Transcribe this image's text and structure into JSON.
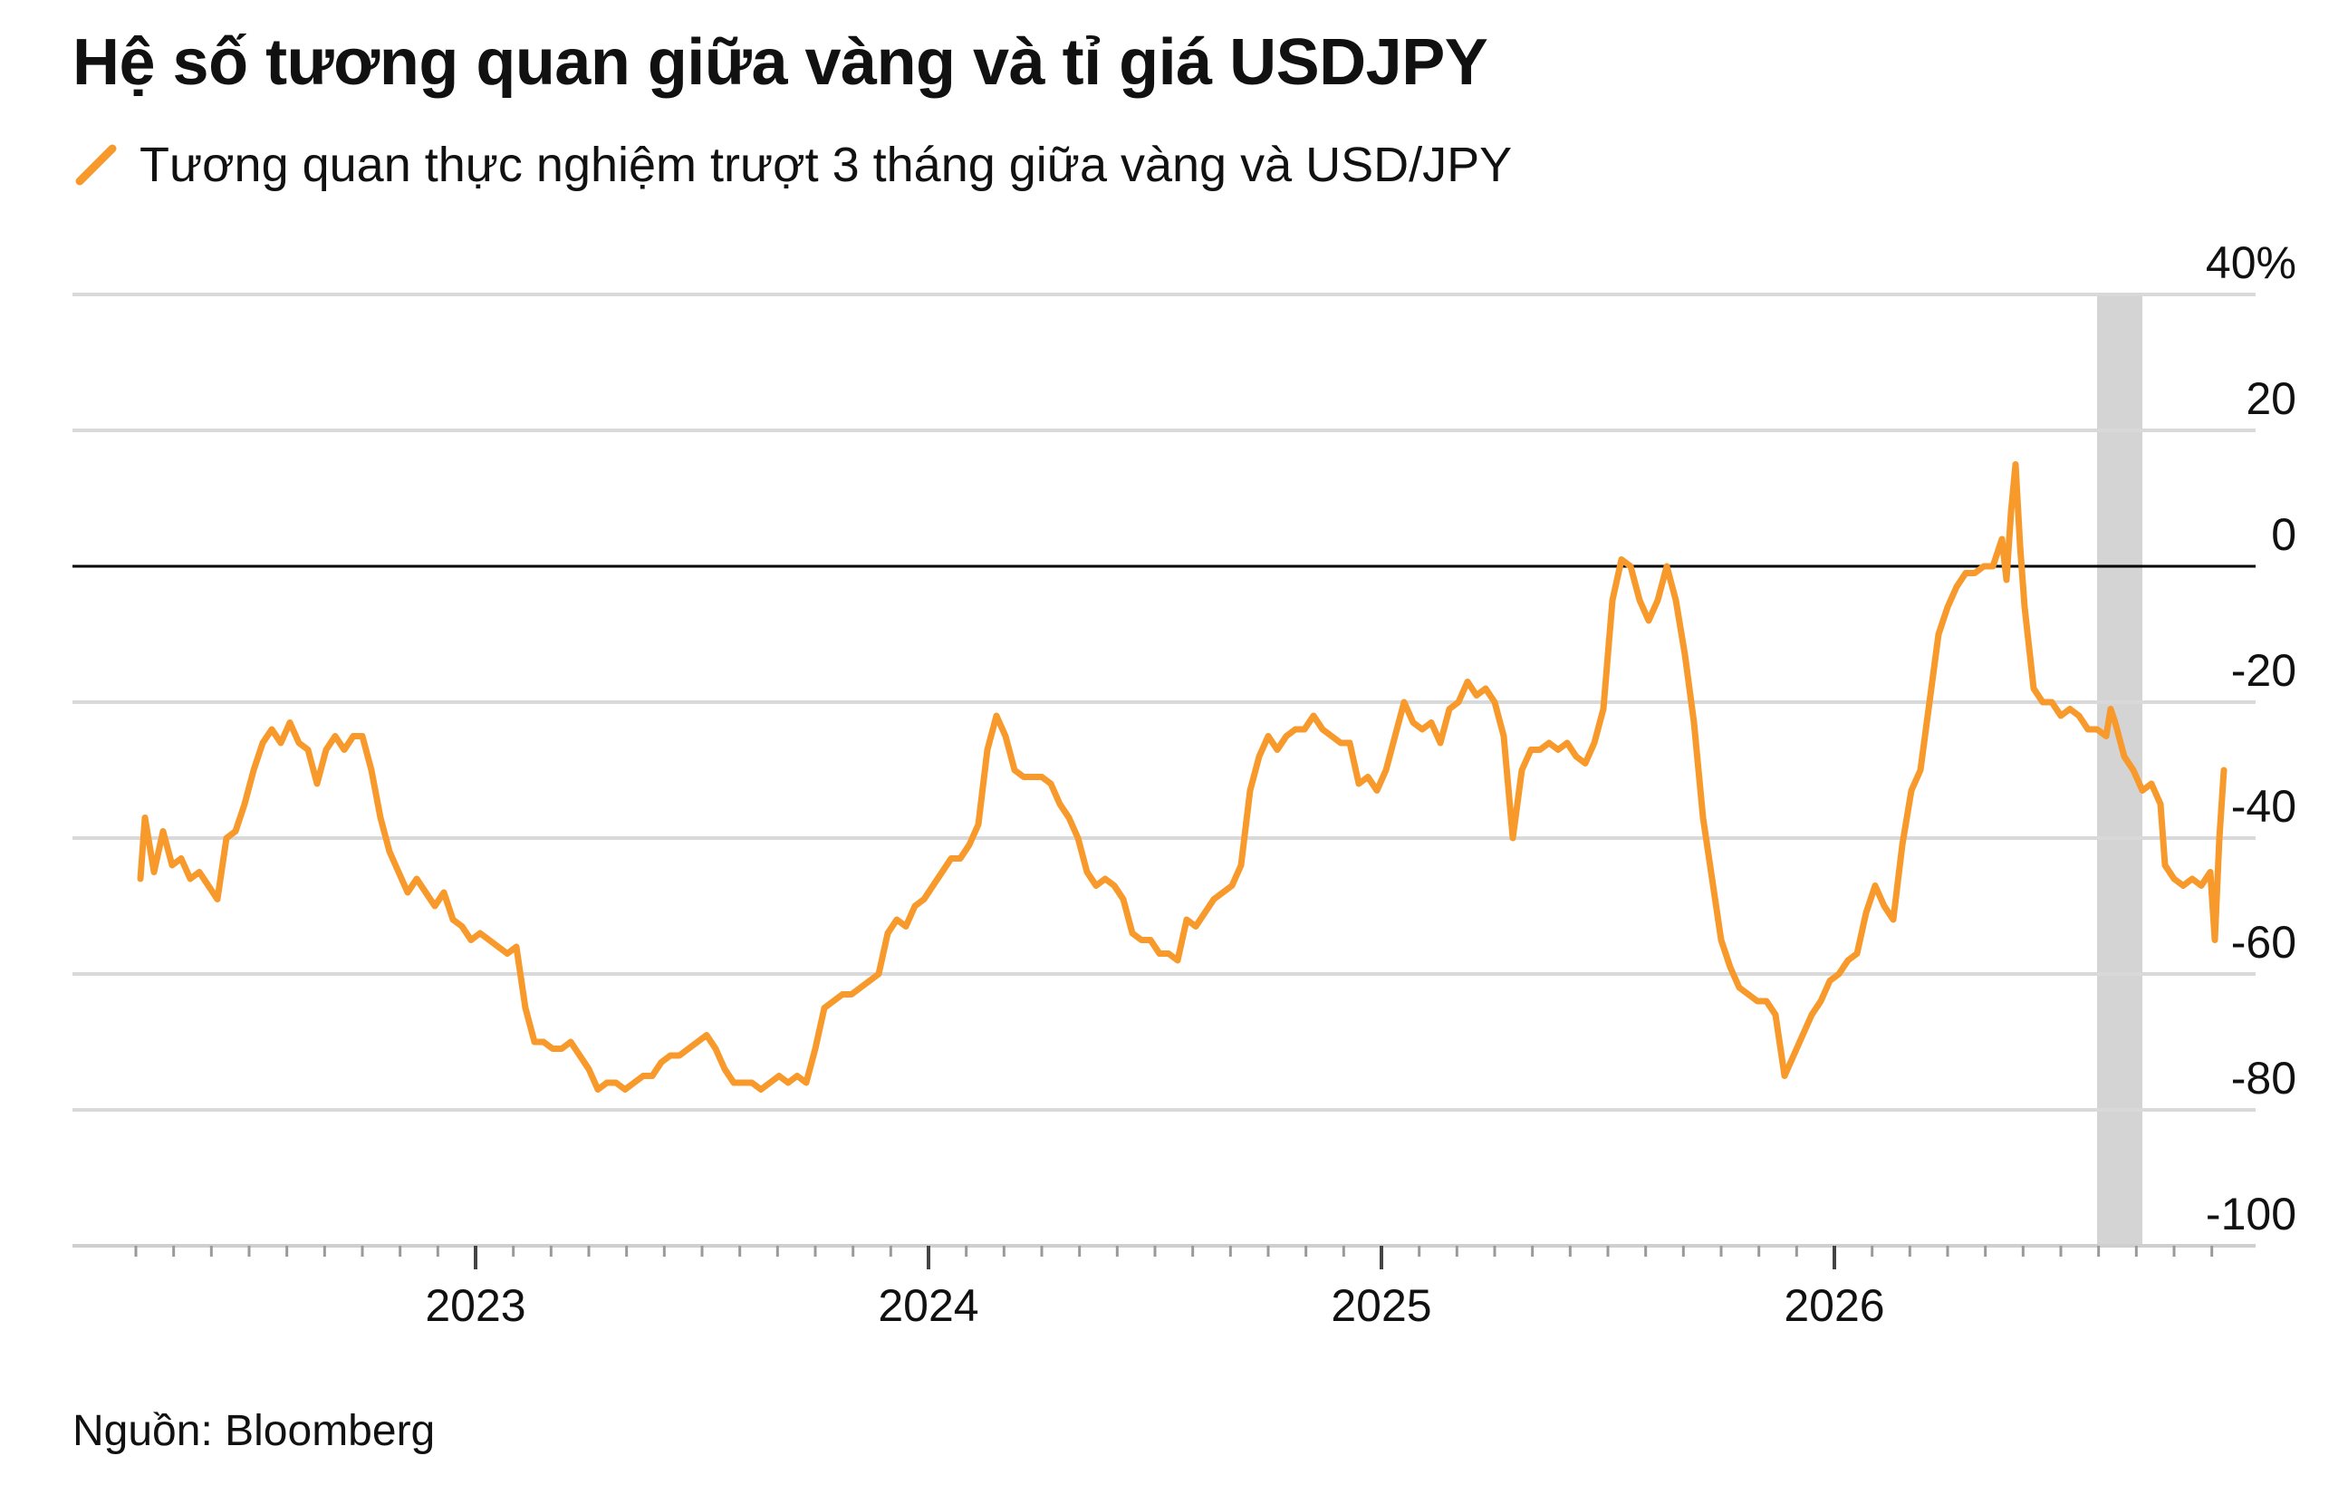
{
  "title": "Hệ số tương quan giữa vàng và tỉ giá USDJPY",
  "source": "Nguồn: Bloomberg",
  "chart_data": {
    "type": "line",
    "title": "Hệ số tương quan giữa vàng và tỉ giá USDJPY",
    "xlabel": "",
    "ylabel": "",
    "ylim": [
      -100,
      40
    ],
    "xlim": [
      2022.21,
      2026.86
    ],
    "y_ticks": [
      40,
      20,
      0,
      -20,
      -40,
      -60,
      -80,
      -100
    ],
    "y_tick_labels": [
      "40%",
      "20",
      "0",
      "-20",
      "-40",
      "-60",
      "-80",
      "-100"
    ],
    "x_ticks": [
      2023,
      2024,
      2025,
      2026
    ],
    "x_tick_labels": [
      "2023",
      "2024",
      "2025",
      "2026"
    ],
    "grid": true,
    "zero_line": true,
    "legend_position": "top-left",
    "colors": {
      "series": "#F7992B",
      "grid": "#d9d9d9",
      "zero_line": "#000000",
      "shade": "#d4d4d4"
    },
    "shaded_region": {
      "x_start": 2026.58,
      "x_end": 2026.68
    },
    "series": [
      {
        "name": "Tương quan thực nghiệm trượt 3 tháng giữa vàng và USD/JPY",
        "points": [
          [
            2022.26,
            -46
          ],
          [
            2022.27,
            -37
          ],
          [
            2022.29,
            -45
          ],
          [
            2022.31,
            -39
          ],
          [
            2022.33,
            -44
          ],
          [
            2022.35,
            -43
          ],
          [
            2022.37,
            -46
          ],
          [
            2022.39,
            -45
          ],
          [
            2022.41,
            -47
          ],
          [
            2022.43,
            -49
          ],
          [
            2022.45,
            -40
          ],
          [
            2022.47,
            -39
          ],
          [
            2022.49,
            -35
          ],
          [
            2022.51,
            -30
          ],
          [
            2022.53,
            -26
          ],
          [
            2022.55,
            -24
          ],
          [
            2022.57,
            -26
          ],
          [
            2022.59,
            -23
          ],
          [
            2022.61,
            -26
          ],
          [
            2022.63,
            -27
          ],
          [
            2022.65,
            -32
          ],
          [
            2022.67,
            -27
          ],
          [
            2022.69,
            -25
          ],
          [
            2022.71,
            -27
          ],
          [
            2022.73,
            -25
          ],
          [
            2022.75,
            -25
          ],
          [
            2022.77,
            -30
          ],
          [
            2022.79,
            -37
          ],
          [
            2022.81,
            -42
          ],
          [
            2022.83,
            -45
          ],
          [
            2022.85,
            -48
          ],
          [
            2022.87,
            -46
          ],
          [
            2022.89,
            -48
          ],
          [
            2022.91,
            -50
          ],
          [
            2022.93,
            -48
          ],
          [
            2022.95,
            -52
          ],
          [
            2022.97,
            -53
          ],
          [
            2022.99,
            -55
          ],
          [
            2023.01,
            -54
          ],
          [
            2023.03,
            -55
          ],
          [
            2023.05,
            -56
          ],
          [
            2023.07,
            -57
          ],
          [
            2023.09,
            -56
          ],
          [
            2023.11,
            -65
          ],
          [
            2023.13,
            -70
          ],
          [
            2023.15,
            -70
          ],
          [
            2023.17,
            -71
          ],
          [
            2023.19,
            -71
          ],
          [
            2023.21,
            -70
          ],
          [
            2023.23,
            -72
          ],
          [
            2023.25,
            -74
          ],
          [
            2023.27,
            -77
          ],
          [
            2023.29,
            -76
          ],
          [
            2023.31,
            -76
          ],
          [
            2023.33,
            -77
          ],
          [
            2023.35,
            -76
          ],
          [
            2023.37,
            -75
          ],
          [
            2023.39,
            -75
          ],
          [
            2023.41,
            -73
          ],
          [
            2023.43,
            -72
          ],
          [
            2023.45,
            -72
          ],
          [
            2023.47,
            -71
          ],
          [
            2023.49,
            -70
          ],
          [
            2023.51,
            -69
          ],
          [
            2023.53,
            -71
          ],
          [
            2023.55,
            -74
          ],
          [
            2023.57,
            -76
          ],
          [
            2023.59,
            -76
          ],
          [
            2023.61,
            -76
          ],
          [
            2023.63,
            -77
          ],
          [
            2023.65,
            -76
          ],
          [
            2023.67,
            -75
          ],
          [
            2023.69,
            -76
          ],
          [
            2023.71,
            -75
          ],
          [
            2023.73,
            -76
          ],
          [
            2023.75,
            -71
          ],
          [
            2023.77,
            -65
          ],
          [
            2023.79,
            -64
          ],
          [
            2023.81,
            -63
          ],
          [
            2023.83,
            -63
          ],
          [
            2023.85,
            -62
          ],
          [
            2023.87,
            -61
          ],
          [
            2023.89,
            -60
          ],
          [
            2023.91,
            -54
          ],
          [
            2023.93,
            -52
          ],
          [
            2023.95,
            -53
          ],
          [
            2023.97,
            -50
          ],
          [
            2023.99,
            -49
          ],
          [
            2024.01,
            -47
          ],
          [
            2024.03,
            -45
          ],
          [
            2024.05,
            -43
          ],
          [
            2024.07,
            -43
          ],
          [
            2024.09,
            -41
          ],
          [
            2024.11,
            -38
          ],
          [
            2024.13,
            -27
          ],
          [
            2024.15,
            -22
          ],
          [
            2024.17,
            -25
          ],
          [
            2024.19,
            -30
          ],
          [
            2024.21,
            -31
          ],
          [
            2024.23,
            -31
          ],
          [
            2024.25,
            -31
          ],
          [
            2024.27,
            -32
          ],
          [
            2024.29,
            -35
          ],
          [
            2024.31,
            -37
          ],
          [
            2024.33,
            -40
          ],
          [
            2024.35,
            -45
          ],
          [
            2024.37,
            -47
          ],
          [
            2024.39,
            -46
          ],
          [
            2024.41,
            -47
          ],
          [
            2024.43,
            -49
          ],
          [
            2024.45,
            -54
          ],
          [
            2024.47,
            -55
          ],
          [
            2024.49,
            -55
          ],
          [
            2024.51,
            -57
          ],
          [
            2024.53,
            -57
          ],
          [
            2024.55,
            -58
          ],
          [
            2024.57,
            -52
          ],
          [
            2024.59,
            -53
          ],
          [
            2024.61,
            -51
          ],
          [
            2024.63,
            -49
          ],
          [
            2024.65,
            -48
          ],
          [
            2024.67,
            -47
          ],
          [
            2024.69,
            -44
          ],
          [
            2024.71,
            -33
          ],
          [
            2024.73,
            -28
          ],
          [
            2024.75,
            -25
          ],
          [
            2024.77,
            -27
          ],
          [
            2024.79,
            -25
          ],
          [
            2024.81,
            -24
          ],
          [
            2024.83,
            -24
          ],
          [
            2024.85,
            -22
          ],
          [
            2024.87,
            -24
          ],
          [
            2024.89,
            -25
          ],
          [
            2024.91,
            -26
          ],
          [
            2024.93,
            -26
          ],
          [
            2024.95,
            -32
          ],
          [
            2024.97,
            -31
          ],
          [
            2024.99,
            -33
          ],
          [
            2025.01,
            -30
          ],
          [
            2025.03,
            -25
          ],
          [
            2025.05,
            -20
          ],
          [
            2025.07,
            -23
          ],
          [
            2025.09,
            -24
          ],
          [
            2025.11,
            -23
          ],
          [
            2025.13,
            -26
          ],
          [
            2025.15,
            -21
          ],
          [
            2025.17,
            -20
          ],
          [
            2025.19,
            -17
          ],
          [
            2025.21,
            -19
          ],
          [
            2025.23,
            -18
          ],
          [
            2025.25,
            -20
          ],
          [
            2025.27,
            -25
          ],
          [
            2025.29,
            -40
          ],
          [
            2025.31,
            -30
          ],
          [
            2025.33,
            -27
          ],
          [
            2025.35,
            -27
          ],
          [
            2025.37,
            -26
          ],
          [
            2025.39,
            -27
          ],
          [
            2025.41,
            -26
          ],
          [
            2025.43,
            -28
          ],
          [
            2025.45,
            -29
          ],
          [
            2025.47,
            -26
          ],
          [
            2025.49,
            -21
          ],
          [
            2025.51,
            -5
          ],
          [
            2025.53,
            1
          ],
          [
            2025.55,
            0
          ],
          [
            2025.57,
            -5
          ],
          [
            2025.59,
            -8
          ],
          [
            2025.61,
            -5
          ],
          [
            2025.63,
            0
          ],
          [
            2025.65,
            -5
          ],
          [
            2025.67,
            -13
          ],
          [
            2025.69,
            -23
          ],
          [
            2025.71,
            -37
          ],
          [
            2025.73,
            -46
          ],
          [
            2025.75,
            -55
          ],
          [
            2025.77,
            -59
          ],
          [
            2025.79,
            -62
          ],
          [
            2025.81,
            -63
          ],
          [
            2025.83,
            -64
          ],
          [
            2025.85,
            -64
          ],
          [
            2025.87,
            -66
          ],
          [
            2025.89,
            -75
          ],
          [
            2025.91,
            -72
          ],
          [
            2025.93,
            -69
          ],
          [
            2025.95,
            -66
          ],
          [
            2025.97,
            -64
          ],
          [
            2025.99,
            -61
          ],
          [
            2026.01,
            -60
          ],
          [
            2026.03,
            -58
          ],
          [
            2026.05,
            -57
          ],
          [
            2026.07,
            -51
          ],
          [
            2026.09,
            -47
          ],
          [
            2026.11,
            -50
          ],
          [
            2026.13,
            -52
          ],
          [
            2026.15,
            -41
          ],
          [
            2026.17,
            -33
          ],
          [
            2026.19,
            -30
          ],
          [
            2026.21,
            -20
          ],
          [
            2026.23,
            -10
          ],
          [
            2026.25,
            -6
          ],
          [
            2026.27,
            -3
          ],
          [
            2026.29,
            -1
          ],
          [
            2026.31,
            -1
          ],
          [
            2026.33,
            0
          ],
          [
            2026.35,
            0
          ],
          [
            2026.37,
            4
          ],
          [
            2026.38,
            -2
          ],
          [
            2026.39,
            8
          ],
          [
            2026.4,
            15
          ],
          [
            2026.41,
            3
          ],
          [
            2026.42,
            -6
          ],
          [
            2026.44,
            -18
          ],
          [
            2026.46,
            -20
          ],
          [
            2026.48,
            -20
          ],
          [
            2026.5,
            -22
          ],
          [
            2026.52,
            -21
          ],
          [
            2026.54,
            -22
          ],
          [
            2026.56,
            -24
          ],
          [
            2026.58,
            -24
          ],
          [
            2026.6,
            -25
          ],
          [
            2026.61,
            -21
          ],
          [
            2026.62,
            -23
          ],
          [
            2026.64,
            -28
          ],
          [
            2026.66,
            -30
          ],
          [
            2026.68,
            -33
          ],
          [
            2026.7,
            -32
          ],
          [
            2026.72,
            -35
          ],
          [
            2026.73,
            -44
          ],
          [
            2026.75,
            -46
          ],
          [
            2026.77,
            -47
          ],
          [
            2026.79,
            -46
          ],
          [
            2026.81,
            -47
          ],
          [
            2026.83,
            -45
          ],
          [
            2026.84,
            -55
          ],
          [
            2026.85,
            -40
          ],
          [
            2026.86,
            -30
          ]
        ]
      }
    ]
  }
}
